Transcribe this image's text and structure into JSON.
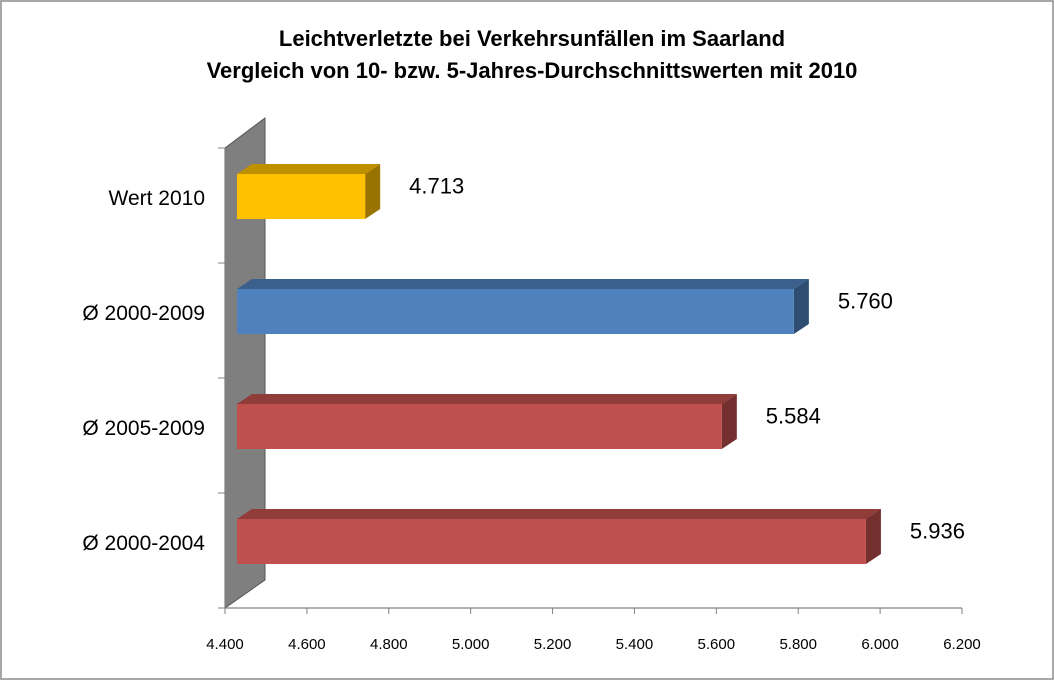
{
  "chart_data": {
    "type": "bar3d-horizontal",
    "title": "Leichtverletzte bei Verkehrsunfällen im Saarland",
    "subtitle": "Vergleich von 10- bzw. 5-Jahres-Durchschnittswerten mit 2010",
    "categories": [
      "Wert 2010",
      "Ø 2000-2009",
      "Ø 2005-2009",
      "Ø 2000-2004"
    ],
    "values": [
      4713,
      5760,
      5584,
      5936
    ],
    "value_labels": [
      "4.713",
      "5.760",
      "5.584",
      "5.936"
    ],
    "colors": [
      "#ffc000",
      "#4f81bd",
      "#c0504d",
      "#c0504d"
    ],
    "xlim": [
      4400,
      6200
    ],
    "xticks": [
      {
        "value": 4400,
        "label": "4.400"
      },
      {
        "value": 4600,
        "label": "4.600"
      },
      {
        "value": 4800,
        "label": "4.800"
      },
      {
        "value": 5000,
        "label": "5.000"
      },
      {
        "value": 5200,
        "label": "5.200"
      },
      {
        "value": 5400,
        "label": "5.400"
      },
      {
        "value": 5600,
        "label": "5.600"
      },
      {
        "value": 5800,
        "label": "5.800"
      },
      {
        "value": 6000,
        "label": "6.000"
      },
      {
        "value": 6200,
        "label": "6.200"
      }
    ]
  }
}
